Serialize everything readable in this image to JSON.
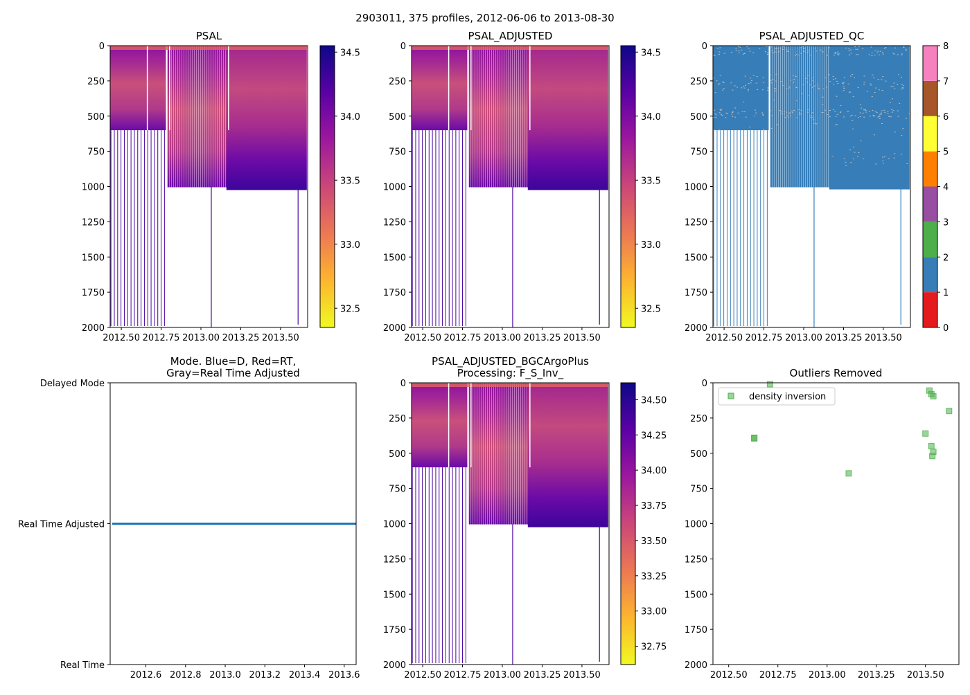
{
  "figure": {
    "suptitle": "2903011, 375 profiles, 2012-06-06 to 2013-08-30"
  },
  "colors": {
    "plasma": [
      "#f0f921",
      "#fdb42f",
      "#ed7953",
      "#cc4778",
      "#9c179e",
      "#5c01a6",
      "#0d0887"
    ],
    "qc": [
      "#e41a1c",
      "#377eb8",
      "#4daf4a",
      "#984ea3",
      "#ff7f00",
      "#ffff33",
      "#a65628",
      "#f781bf",
      "#999999"
    ],
    "mode_line": "#1f77b4",
    "outlier_marker": "#4daf4a"
  },
  "chart_data": [
    {
      "id": "psal",
      "type": "heatmap",
      "title": "PSAL",
      "xlabel": "",
      "ylabel": "",
      "xlim": [
        2012.43,
        2013.67
      ],
      "ylim": [
        2000,
        0
      ],
      "xticks": [
        2012.5,
        2012.75,
        2013.0,
        2013.25,
        2013.5
      ],
      "xtick_labels": [
        "2012.50",
        "2012.75",
        "2013.00",
        "2013.25",
        "2013.50"
      ],
      "yticks": [
        0,
        250,
        500,
        750,
        1000,
        1250,
        1500,
        1750,
        2000
      ],
      "ytick_labels": [
        "0",
        "250",
        "500",
        "750",
        "1000",
        "1250",
        "1500",
        "1750",
        "2000"
      ],
      "colorbar": {
        "range": [
          32.35,
          34.55
        ],
        "ticks": [
          32.5,
          33.0,
          33.5,
          34.0,
          34.5
        ],
        "tick_labels": [
          "32.5",
          "33.0",
          "33.5",
          "34.0",
          "34.5"
        ],
        "cmap": "plasma"
      }
    },
    {
      "id": "psal_adjusted",
      "type": "heatmap",
      "title": "PSAL_ADJUSTED",
      "xlabel": "",
      "ylabel": "",
      "xlim": [
        2012.43,
        2013.67
      ],
      "ylim": [
        2000,
        0
      ],
      "xticks": [
        2012.5,
        2012.75,
        2013.0,
        2013.25,
        2013.5
      ],
      "xtick_labels": [
        "2012.50",
        "2012.75",
        "2013.00",
        "2013.25",
        "2013.50"
      ],
      "yticks": [
        0,
        250,
        500,
        750,
        1000,
        1250,
        1500,
        1750,
        2000
      ],
      "ytick_labels": [
        "0",
        "250",
        "500",
        "750",
        "1000",
        "1250",
        "1500",
        "1750",
        "2000"
      ],
      "colorbar": {
        "range": [
          32.35,
          34.55
        ],
        "ticks": [
          32.5,
          33.0,
          33.5,
          34.0,
          34.5
        ],
        "tick_labels": [
          "32.5",
          "33.0",
          "33.5",
          "34.0",
          "34.5"
        ],
        "cmap": "plasma"
      }
    },
    {
      "id": "psal_adjusted_qc",
      "type": "heatmap",
      "title": "PSAL_ADJUSTED_QC",
      "xlabel": "",
      "ylabel": "",
      "xlim": [
        2012.43,
        2013.67
      ],
      "ylim": [
        2000,
        0
      ],
      "xticks": [
        2012.5,
        2012.75,
        2013.0,
        2013.25,
        2013.5
      ],
      "xtick_labels": [
        "2012.50",
        "2012.75",
        "2013.00",
        "2013.25",
        "2013.50"
      ],
      "yticks": [
        0,
        250,
        500,
        750,
        1000,
        1250,
        1500,
        1750,
        2000
      ],
      "ytick_labels": [
        "0",
        "250",
        "500",
        "750",
        "1000",
        "1250",
        "1500",
        "1750",
        "2000"
      ],
      "colorbar": {
        "range": [
          0,
          8
        ],
        "ticks": [
          0,
          1,
          2,
          3,
          4,
          5,
          6,
          7,
          8
        ],
        "tick_labels": [
          "0",
          "1",
          "2",
          "3",
          "4",
          "5",
          "6",
          "7",
          "8"
        ],
        "cmap": "qc"
      }
    },
    {
      "id": "mode",
      "type": "line",
      "title_lines": [
        "Mode. Blue=D, Red=RT,",
        "Gray=Real Time Adjusted"
      ],
      "xlabel": "",
      "ylabel": "",
      "xlim": [
        2012.42,
        2013.66
      ],
      "ylim": [
        0,
        2
      ],
      "xticks": [
        2012.6,
        2012.8,
        2013.0,
        2013.2,
        2013.4,
        2013.6
      ],
      "xtick_labels": [
        "2012.6",
        "2012.8",
        "2013.0",
        "2013.2",
        "2013.4",
        "2013.6"
      ],
      "yticks": [
        0,
        1,
        2
      ],
      "ytick_labels": [
        "Real Time",
        "Real Time Adjusted",
        "Delayed Mode"
      ],
      "series": [
        {
          "name": "mode",
          "x": [
            2012.43,
            2013.66
          ],
          "y": [
            1,
            1
          ]
        }
      ]
    },
    {
      "id": "psal_bgc",
      "type": "heatmap",
      "title_lines": [
        "PSAL_ADJUSTED_BGCArgoPlus",
        "Processing: F_S_Inv_"
      ],
      "xlabel": "",
      "ylabel": "",
      "xlim": [
        2012.43,
        2013.67
      ],
      "ylim": [
        2000,
        0
      ],
      "xticks": [
        2012.5,
        2012.75,
        2013.0,
        2013.25,
        2013.5
      ],
      "xtick_labels": [
        "2012.50",
        "2012.75",
        "2013.00",
        "2013.25",
        "2013.50"
      ],
      "yticks": [
        0,
        250,
        500,
        750,
        1000,
        1250,
        1500,
        1750,
        2000
      ],
      "ytick_labels": [
        "0",
        "250",
        "500",
        "750",
        "1000",
        "1250",
        "1500",
        "1750",
        "2000"
      ],
      "colorbar": {
        "range": [
          32.62,
          34.62
        ],
        "ticks": [
          32.75,
          33.0,
          33.25,
          33.5,
          33.75,
          34.0,
          34.25,
          34.5
        ],
        "tick_labels": [
          "32.75",
          "33.00",
          "33.25",
          "33.50",
          "33.75",
          "34.00",
          "34.25",
          "34.50"
        ],
        "cmap": "plasma"
      }
    },
    {
      "id": "outliers",
      "type": "scatter",
      "title": "Outliers Removed",
      "xlabel": "",
      "ylabel": "",
      "xlim": [
        2012.42,
        2013.67
      ],
      "ylim": [
        2000,
        0
      ],
      "xticks": [
        2012.5,
        2012.75,
        2013.0,
        2013.25,
        2013.5
      ],
      "xtick_labels": [
        "2012.50",
        "2012.75",
        "2013.00",
        "2013.25",
        "2013.50"
      ],
      "yticks": [
        0,
        250,
        500,
        750,
        1000,
        1250,
        1500,
        1750,
        2000
      ],
      "ytick_labels": [
        "0",
        "250",
        "500",
        "750",
        "1000",
        "1250",
        "1500",
        "1750",
        "2000"
      ],
      "legend": {
        "position": "top-left",
        "entries": [
          "density inversion"
        ]
      },
      "series": [
        {
          "name": "density inversion",
          "points": [
            [
              2012.63,
              395
            ],
            [
              2012.63,
              390
            ],
            [
              2012.71,
              10
            ],
            [
              2013.11,
              643
            ],
            [
              2013.5,
              360
            ],
            [
              2013.52,
              55
            ],
            [
              2013.53,
              80
            ],
            [
              2013.54,
              95
            ],
            [
              2013.53,
              450
            ],
            [
              2013.54,
              490
            ],
            [
              2013.535,
              520
            ],
            [
              2013.62,
              200
            ]
          ]
        }
      ]
    }
  ]
}
